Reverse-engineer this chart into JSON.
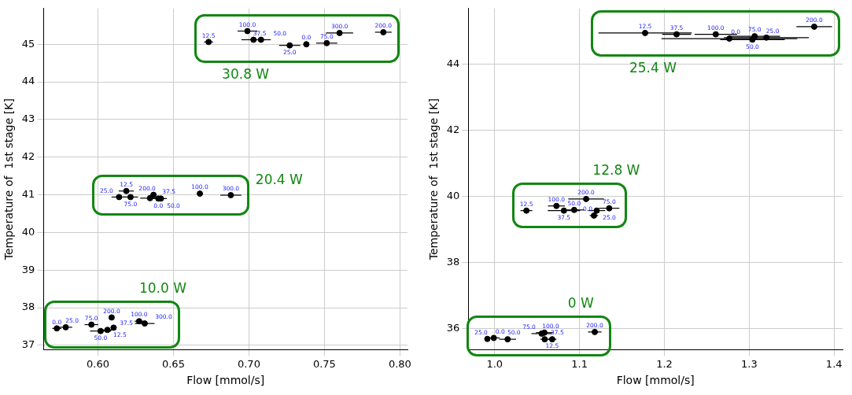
{
  "chart_data": [
    {
      "type": "scatter",
      "xlabel": "Flow [mmol/s]",
      "ylabel": "Temperature of  1st stage [K]",
      "xlim": [
        0.564,
        0.805
      ],
      "ylim": [
        36.88,
        45.95
      ],
      "xticks": [
        {
          "value": 0.6,
          "label": "0.60"
        },
        {
          "value": 0.65,
          "label": "0.65"
        },
        {
          "value": 0.7,
          "label": "0.70"
        },
        {
          "value": 0.75,
          "label": "0.75"
        },
        {
          "value": 0.8,
          "label": "0.80"
        }
      ],
      "yticks": [
        37,
        38,
        39,
        40,
        41,
        42,
        43,
        44,
        45
      ],
      "grid": true,
      "marker": "circle",
      "series": [
        {
          "name": "30.8 W",
          "color": "#000000",
          "x": [
            0.6733,
            0.699,
            0.703,
            0.708,
            0.727,
            0.738,
            0.7515,
            0.76,
            0.789
          ],
          "values": [
            45.06,
            45.35,
            45.12,
            45.12,
            44.97,
            45.0,
            45.03,
            45.3,
            45.32
          ],
          "xerrors": [
            0.003,
            0.0065,
            0.008,
            0.0065,
            0.007,
            0.002,
            0.007,
            0.009,
            0.0055
          ]
        },
        {
          "name": "20.4 W",
          "color": "#000000",
          "x": [
            0.6188,
            0.614,
            0.6216,
            0.6345,
            0.6368,
            0.64,
            0.6417,
            0.6675,
            0.688
          ],
          "values": [
            41.1,
            40.94,
            40.94,
            40.91,
            41.0,
            40.9,
            40.9,
            41.03,
            40.99
          ],
          "xerrors": [
            0.005,
            0.005,
            0.005,
            0.0065,
            0.002,
            0.004,
            0.004,
            0.002,
            0.007
          ]
        },
        {
          "name": "10.0 W",
          "color": "#000000",
          "x": [
            0.5728,
            0.5787,
            0.5957,
            0.6018,
            0.6063,
            0.6104,
            0.6091,
            0.6273,
            0.631
          ],
          "values": [
            37.45,
            37.48,
            37.55,
            37.38,
            37.41,
            37.47,
            37.74,
            37.64,
            37.58
          ],
          "xerrors": [
            0.003,
            0.0043,
            0.0045,
            0.007,
            0.004,
            0.002,
            0.001,
            0.003,
            0.0065
          ]
        }
      ],
      "annotations": [
        {
          "text": "12.5",
          "x": 0.6733,
          "y": 45.06
        },
        {
          "text": "100.0",
          "x": 0.699,
          "y": 45.35
        },
        {
          "text": "37.5",
          "x": 0.703,
          "y": 45.12
        },
        {
          "text": "50.0",
          "x": 0.708,
          "y": 45.12
        },
        {
          "text": "25.0",
          "x": 0.727,
          "y": 44.97
        },
        {
          "text": "0.0",
          "x": 0.738,
          "y": 45.0
        },
        {
          "text": "75.0",
          "x": 0.7515,
          "y": 45.03
        },
        {
          "text": "300.0",
          "x": 0.76,
          "y": 45.3
        },
        {
          "text": "200.0",
          "x": 0.789,
          "y": 45.32
        },
        {
          "text": "12.5",
          "x": 0.6188,
          "y": 41.1
        },
        {
          "text": "25.0",
          "x": 0.614,
          "y": 40.94
        },
        {
          "text": "75.0",
          "x": 0.6216,
          "y": 40.94
        },
        {
          "text": "37.5",
          "x": 0.6345,
          "y": 40.91
        },
        {
          "text": "200.0",
          "x": 0.6368,
          "y": 41.0
        },
        {
          "text": "0.0",
          "x": 0.64,
          "y": 40.9
        },
        {
          "text": "50.0",
          "x": 0.6417,
          "y": 40.9
        },
        {
          "text": "100.0",
          "x": 0.6675,
          "y": 41.03
        },
        {
          "text": "300.0",
          "x": 0.688,
          "y": 40.99
        },
        {
          "text": "0.0",
          "x": 0.5728,
          "y": 37.45
        },
        {
          "text": "25.0",
          "x": 0.5787,
          "y": 37.48
        },
        {
          "text": "75.0",
          "x": 0.5957,
          "y": 37.55
        },
        {
          "text": "50.0",
          "x": 0.6018,
          "y": 37.38
        },
        {
          "text": "37.5",
          "x": 0.6063,
          "y": 37.41
        },
        {
          "text": "12.5",
          "x": 0.6104,
          "y": 37.47
        },
        {
          "text": "200.0",
          "x": 0.6091,
          "y": 37.74
        },
        {
          "text": "100.0",
          "x": 0.6273,
          "y": 37.64
        },
        {
          "text": "300.0",
          "x": 0.631,
          "y": 37.58
        }
      ]
    },
    {
      "type": "scatter",
      "xlabel": "Flow [mmol/s]",
      "ylabel": "Temperature of  1st stage [K]",
      "xlim": [
        0.969,
        1.41
      ],
      "ylim": [
        35.36,
        45.68
      ],
      "xticks": [
        {
          "value": 1.0,
          "label": "1.0"
        },
        {
          "value": 1.1,
          "label": "1.1"
        },
        {
          "value": 1.2,
          "label": "1.2"
        },
        {
          "value": 1.3,
          "label": "1.3"
        },
        {
          "value": 1.4,
          "label": "1.4"
        }
      ],
      "yticks": [
        36,
        38,
        40,
        42,
        44
      ],
      "grid": true,
      "marker": "circle",
      "series": [
        {
          "name": "25.4 W",
          "color": "#000000",
          "x": [
            1.1773,
            1.2144,
            1.2606,
            1.2766,
            1.3038,
            1.3064,
            1.3202,
            1.3766
          ],
          "values": [
            44.94,
            44.9,
            44.9,
            44.77,
            44.74,
            44.84,
            44.8,
            45.13
          ],
          "xerrors": [
            0.055,
            0.017,
            0.025,
            0.08,
            0.038,
            0.03,
            0.05,
            0.021
          ]
        },
        {
          "name": "12.8 W",
          "color": "#000000",
          "x": [
            1.0374,
            1.0728,
            1.0816,
            1.0937,
            1.1078,
            1.117,
            1.1203,
            1.135
          ],
          "values": [
            39.57,
            39.71,
            39.57,
            39.59,
            39.92,
            39.42,
            39.57,
            39.64
          ],
          "xerrors": [
            0.007,
            0.01,
            0.019,
            0.012,
            0.021,
            0.005,
            0.01,
            0.012
          ]
        },
        {
          "name": "0 W",
          "color": "#000000",
          "x": [
            0.9914,
            0.999,
            1.0153,
            1.0554,
            1.0586,
            1.059,
            1.0678,
            1.118
          ],
          "values": [
            35.69,
            35.72,
            35.68,
            35.85,
            35.88,
            35.68,
            35.68,
            35.9
          ],
          "xerrors": [
            0.003,
            0.007,
            0.01,
            0.012,
            0.01,
            0.005,
            0.005,
            0.008
          ]
        }
      ],
      "annotations": [
        {
          "text": "12.5",
          "x": 1.1773,
          "y": 44.94
        },
        {
          "text": "37.5",
          "x": 1.2144,
          "y": 44.9
        },
        {
          "text": "100.0",
          "x": 1.2606,
          "y": 44.9
        },
        {
          "text": "0.0",
          "x": 1.2766,
          "y": 44.77
        },
        {
          "text": "50.0",
          "x": 1.3038,
          "y": 44.74
        },
        {
          "text": "75.0",
          "x": 1.3064,
          "y": 44.84
        },
        {
          "text": "25.0",
          "x": 1.3202,
          "y": 44.8
        },
        {
          "text": "200.0",
          "x": 1.3766,
          "y": 45.13
        },
        {
          "text": "12.5",
          "x": 1.0374,
          "y": 39.57
        },
        {
          "text": "100.0",
          "x": 1.0728,
          "y": 39.71
        },
        {
          "text": "37.5",
          "x": 1.0816,
          "y": 39.57
        },
        {
          "text": "50.0",
          "x": 1.0937,
          "y": 39.59
        },
        {
          "text": "200.0",
          "x": 1.1078,
          "y": 39.92
        },
        {
          "text": "0.0",
          "x": 1.117,
          "y": 39.42
        },
        {
          "text": "25.0",
          "x": 1.1203,
          "y": 39.57
        },
        {
          "text": "75.0",
          "x": 1.135,
          "y": 39.64
        },
        {
          "text": "25.0",
          "x": 0.9914,
          "y": 35.69
        },
        {
          "text": "0.0",
          "x": 0.999,
          "y": 35.72
        },
        {
          "text": "50.0",
          "x": 1.0153,
          "y": 35.68
        },
        {
          "text": "75.0",
          "x": 1.0554,
          "y": 35.85
        },
        {
          "text": "100.0",
          "x": 1.0586,
          "y": 35.88
        },
        {
          "text": "37.5",
          "x": 1.059,
          "y": 35.68
        },
        {
          "text": "12.5",
          "x": 1.0678,
          "y": 35.68
        },
        {
          "text": "200.0",
          "x": 1.118,
          "y": 35.9
        }
      ]
    }
  ]
}
